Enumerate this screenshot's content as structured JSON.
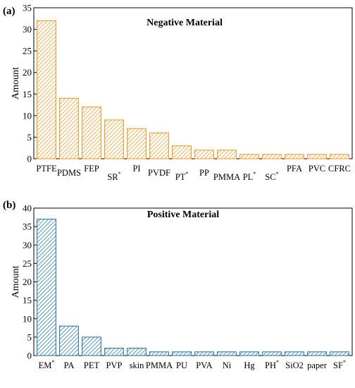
{
  "chart_data": [
    {
      "panel": "(a)",
      "type": "bar",
      "title": "Negative Material",
      "ylabel": "Amount",
      "xlabel": "",
      "ylim": [
        0,
        35
      ],
      "yticks": [
        "0",
        "5",
        "10",
        "15",
        "20",
        "25",
        "30",
        "35"
      ],
      "categories": [
        {
          "name": "PTFE",
          "sup": ""
        },
        {
          "name": "PDMS",
          "sup": ""
        },
        {
          "name": "FEP",
          "sup": ""
        },
        {
          "name": "SR",
          "sup": "*"
        },
        {
          "name": "PI",
          "sup": ""
        },
        {
          "name": "PVDF",
          "sup": ""
        },
        {
          "name": "PT",
          "sup": "*"
        },
        {
          "name": "PP",
          "sup": ""
        },
        {
          "name": "PMMA",
          "sup": ""
        },
        {
          "name": "PL",
          "sup": "*"
        },
        {
          "name": "SC",
          "sup": "*"
        },
        {
          "name": "PFA",
          "sup": ""
        },
        {
          "name": "PVC",
          "sup": ""
        },
        {
          "name": "CFRC",
          "sup": ""
        }
      ],
      "values": [
        32,
        14,
        12,
        9,
        7,
        6,
        3,
        2,
        2,
        1,
        1,
        1,
        1,
        1
      ],
      "bar_color": "#f0a030",
      "grid": false,
      "legend": "none"
    },
    {
      "panel": "(b)",
      "type": "bar",
      "title": "Positive Material",
      "ylabel": "Amount",
      "xlabel": "",
      "ylim": [
        0,
        40
      ],
      "yticks": [
        "0",
        "5",
        "10",
        "15",
        "20",
        "25",
        "30",
        "35",
        "40"
      ],
      "categories": [
        {
          "name": "EM",
          "sup": "*"
        },
        {
          "name": "PA",
          "sup": ""
        },
        {
          "name": "PET",
          "sup": ""
        },
        {
          "name": "PVP",
          "sup": ""
        },
        {
          "name": "skin",
          "sup": ""
        },
        {
          "name": "PMMA",
          "sup": ""
        },
        {
          "name": "PU",
          "sup": ""
        },
        {
          "name": "PVA",
          "sup": ""
        },
        {
          "name": "Ni",
          "sup": ""
        },
        {
          "name": "Hg",
          "sup": ""
        },
        {
          "name": "PH",
          "sup": "*"
        },
        {
          "name": "SiO2",
          "sup": ""
        },
        {
          "name": "paper",
          "sup": ""
        },
        {
          "name": "SF",
          "sup": "*"
        }
      ],
      "values": [
        37,
        8,
        5,
        2,
        2,
        1,
        1,
        1,
        1,
        1,
        1,
        1,
        1,
        1
      ],
      "bar_color": "#2e7fb0",
      "grid": false,
      "legend": "none"
    }
  ]
}
